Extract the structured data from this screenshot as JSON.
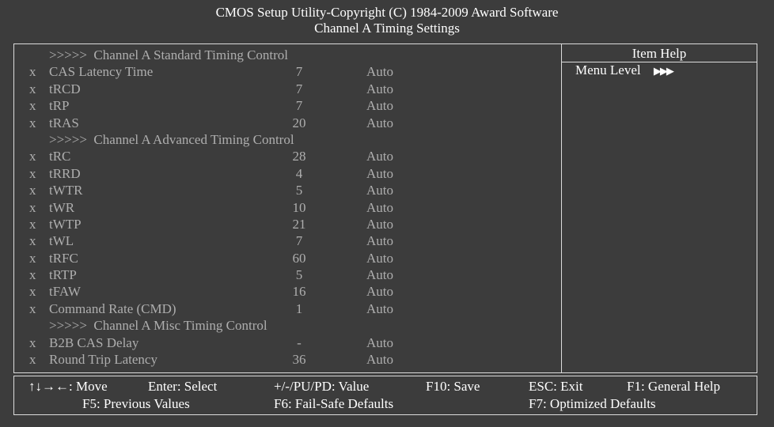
{
  "title": {
    "line1": "CMOS Setup Utility-Copyright (C) 1984-2009 Award Software",
    "line2": "Channel A Timing Settings"
  },
  "rows": [
    {
      "type": "header",
      "name": ">>>>>  Channel A Standard Timing Control"
    },
    {
      "type": "item",
      "mark": "x",
      "name": "CAS Latency Time",
      "value": "7",
      "setting": "Auto"
    },
    {
      "type": "item",
      "mark": "x",
      "name": "tRCD",
      "value": "7",
      "setting": "Auto"
    },
    {
      "type": "item",
      "mark": "x",
      "name": "tRP",
      "value": "7",
      "setting": "Auto"
    },
    {
      "type": "item",
      "mark": "x",
      "name": "tRAS",
      "value": "20",
      "setting": "Auto"
    },
    {
      "type": "header",
      "name": ">>>>>  Channel A Advanced Timing Control"
    },
    {
      "type": "item",
      "mark": "x",
      "name": "tRC",
      "value": "28",
      "setting": "Auto"
    },
    {
      "type": "item",
      "mark": "x",
      "name": "tRRD",
      "value": "4",
      "setting": "Auto"
    },
    {
      "type": "item",
      "mark": "x",
      "name": "tWTR",
      "value": "5",
      "setting": "Auto"
    },
    {
      "type": "item",
      "mark": "x",
      "name": "tWR",
      "value": "10",
      "setting": "Auto"
    },
    {
      "type": "item",
      "mark": "x",
      "name": "tWTP",
      "value": "21",
      "setting": "Auto"
    },
    {
      "type": "item",
      "mark": "x",
      "name": "tWL",
      "value": "7",
      "setting": "Auto"
    },
    {
      "type": "item",
      "mark": "x",
      "name": "tRFC",
      "value": "60",
      "setting": "Auto"
    },
    {
      "type": "item",
      "mark": "x",
      "name": "tRTP",
      "value": "5",
      "setting": "Auto"
    },
    {
      "type": "item",
      "mark": "x",
      "name": "tFAW",
      "value": "16",
      "setting": "Auto"
    },
    {
      "type": "item",
      "mark": "x",
      "name": "Command Rate (CMD)",
      "value": "1",
      "setting": "Auto"
    },
    {
      "type": "header",
      "name": ">>>>>  Channel A Misc Timing Control"
    },
    {
      "type": "item",
      "mark": "x",
      "name": "B2B CAS Delay",
      "value": "-",
      "setting": "Auto"
    },
    {
      "type": "item",
      "mark": "x",
      "name": "Round Trip Latency",
      "value": "36",
      "setting": "Auto"
    }
  ],
  "help": {
    "title": "Item Help",
    "menu_level_label": "Menu Level",
    "menu_level_arrows": "▶▶▶"
  },
  "footer": {
    "move": "↑↓→←: Move",
    "select": "Enter: Select",
    "value": "+/-/PU/PD: Value",
    "save": "F10: Save",
    "exit": "ESC: Exit",
    "general_help": "F1: General Help",
    "previous": "F5: Previous Values",
    "fail_safe": "F6: Fail-Safe Defaults",
    "optimized": "F7: Optimized Defaults"
  },
  "colors": {
    "background": "#3c3c3c",
    "border": "#dcdcdc",
    "text_active": "#ffffff",
    "text_disabled": "#aeaeae"
  }
}
